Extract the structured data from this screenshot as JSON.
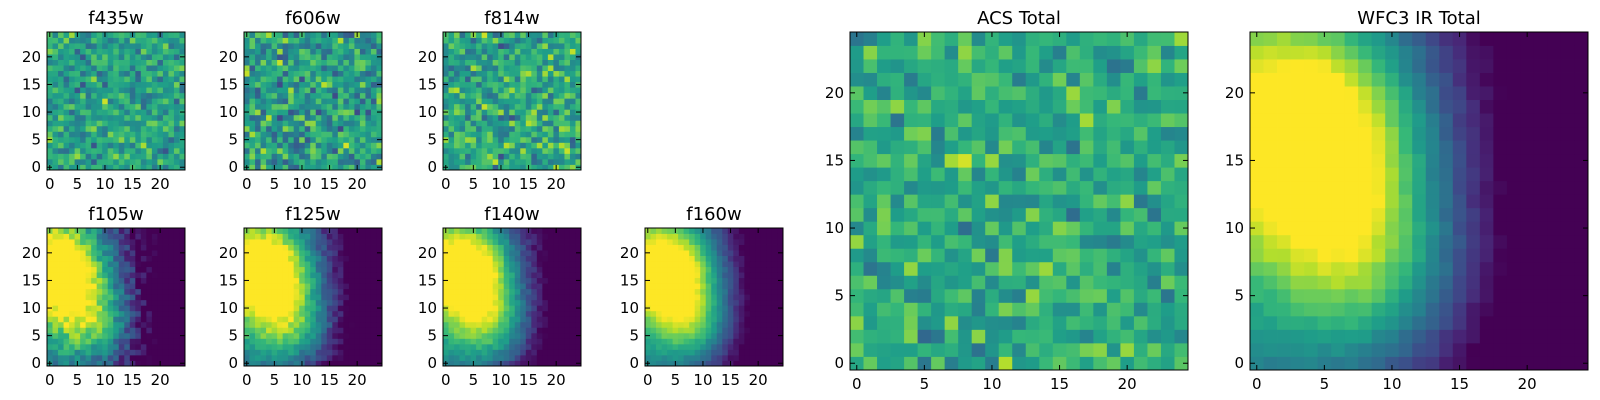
{
  "colormap": "viridis",
  "chart_data": [
    {
      "type": "heatmap",
      "title": "f435w",
      "xticks": [
        "0",
        "5",
        "10",
        "15",
        "20"
      ],
      "yticks": [
        "0",
        "5",
        "10",
        "15",
        "20"
      ],
      "xlim": [
        -0.5,
        24.5
      ],
      "ylim": [
        -0.5,
        24.5
      ],
      "value_range": [
        0,
        1
      ],
      "grid": false,
      "z_model": "noise",
      "mean": 0.58,
      "spread": 0.22
    },
    {
      "type": "heatmap",
      "title": "f606w",
      "xticks": [
        "0",
        "5",
        "10",
        "15",
        "20"
      ],
      "yticks": [
        "0",
        "5",
        "10",
        "15",
        "20"
      ],
      "xlim": [
        -0.5,
        24.5
      ],
      "ylim": [
        -0.5,
        24.5
      ],
      "value_range": [
        0,
        1
      ],
      "grid": false,
      "z_model": "noise",
      "mean": 0.55,
      "spread": 0.28
    },
    {
      "type": "heatmap",
      "title": "f814w",
      "xticks": [
        "0",
        "5",
        "10",
        "15",
        "20"
      ],
      "yticks": [
        "0",
        "5",
        "10",
        "15",
        "20"
      ],
      "xlim": [
        -0.5,
        24.5
      ],
      "ylim": [
        -0.5,
        24.5
      ],
      "value_range": [
        0,
        1
      ],
      "grid": false,
      "z_model": "noise",
      "mean": 0.6,
      "spread": 0.26
    },
    {
      "type": "heatmap",
      "title": "f105w",
      "xticks": [
        "0",
        "5",
        "10",
        "15",
        "20"
      ],
      "yticks": [
        "0",
        "5",
        "10",
        "15",
        "20"
      ],
      "xlim": [
        -0.5,
        24.5
      ],
      "ylim": [
        -0.5,
        24.5
      ],
      "value_range": [
        0,
        1
      ],
      "grid": false,
      "z_model": "source",
      "peak_x": 2,
      "peak_y": 17,
      "noise": 0.12
    },
    {
      "type": "heatmap",
      "title": "f125w",
      "xticks": [
        "0",
        "5",
        "10",
        "15",
        "20"
      ],
      "yticks": [
        "0",
        "5",
        "10",
        "15",
        "20"
      ],
      "xlim": [
        -0.5,
        24.5
      ],
      "ylim": [
        -0.5,
        24.5
      ],
      "value_range": [
        0,
        1
      ],
      "grid": false,
      "z_model": "source",
      "peak_x": 4,
      "peak_y": 17,
      "noise": 0.08
    },
    {
      "type": "heatmap",
      "title": "f140w",
      "xticks": [
        "0",
        "5",
        "10",
        "15",
        "20"
      ],
      "yticks": [
        "0",
        "5",
        "10",
        "15",
        "20"
      ],
      "xlim": [
        -0.5,
        24.5
      ],
      "ylim": [
        -0.5,
        24.5
      ],
      "value_range": [
        0,
        1
      ],
      "grid": false,
      "z_model": "source",
      "peak_x": 4,
      "peak_y": 17,
      "noise": 0.06
    },
    {
      "type": "heatmap",
      "title": "f160w",
      "xticks": [
        "0",
        "5",
        "10",
        "15",
        "20"
      ],
      "yticks": [
        "0",
        "5",
        "10",
        "15",
        "20"
      ],
      "xlim": [
        -0.5,
        24.5
      ],
      "ylim": [
        -0.5,
        24.5
      ],
      "value_range": [
        0,
        1
      ],
      "grid": false,
      "z_model": "source",
      "peak_x": 4,
      "peak_y": 17,
      "noise": 0.04
    },
    {
      "type": "heatmap",
      "title": "ACS Total",
      "xticks": [
        "0",
        "5",
        "10",
        "15",
        "20"
      ],
      "yticks": [
        "0",
        "5",
        "10",
        "15",
        "20"
      ],
      "xlim": [
        -0.5,
        24.5
      ],
      "ylim": [
        -0.5,
        24.5
      ],
      "value_range": [
        0,
        1
      ],
      "grid": false,
      "z_model": "noise",
      "mean": 0.62,
      "spread": 0.2
    },
    {
      "type": "heatmap",
      "title": "WFC3 IR Total",
      "xticks": [
        "0",
        "5",
        "10",
        "15",
        "20"
      ],
      "yticks": [
        "0",
        "5",
        "10",
        "15",
        "20"
      ],
      "xlim": [
        -0.5,
        24.5
      ],
      "ylim": [
        -0.5,
        24.5
      ],
      "value_range": [
        0,
        1
      ],
      "grid": false,
      "z_model": "source",
      "peak_x": 4,
      "peak_y": 17,
      "noise": 0.03
    }
  ]
}
